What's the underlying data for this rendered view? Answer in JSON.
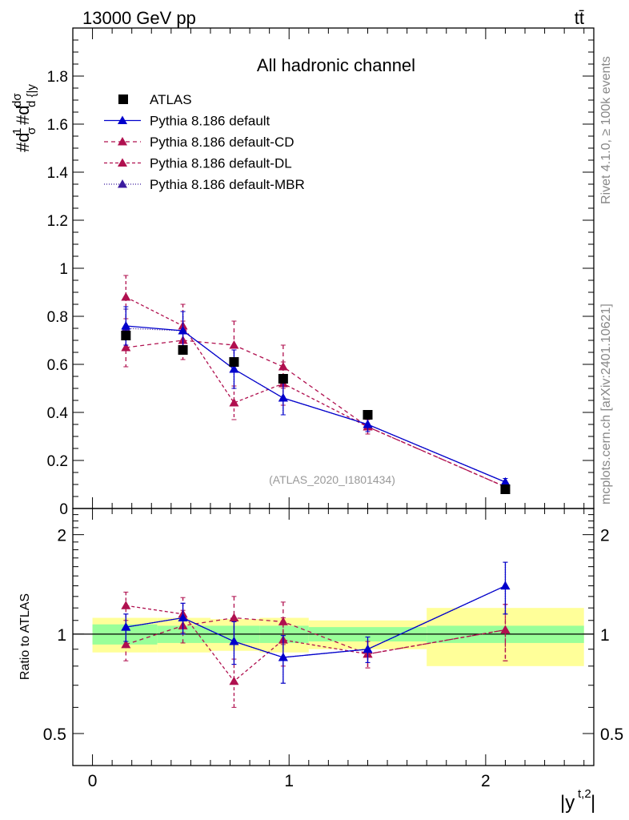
{
  "header": {
    "energy": "13000 GeV pp",
    "process": "tt̄"
  },
  "side_labels": {
    "rivet": "Rivet 4.1.0, ≥ 100k events",
    "mcplots": "mcplots.cern.ch [arXiv:2401.10621]"
  },
  "chart_data": {
    "type": "line",
    "title": "All hadronic channel",
    "analysis": "(ATLAS_2020_I1801434)",
    "xlabel": "|y^{t,2}|",
    "ylabel": "#dσ^{1}/#d dσ^{lld} / d{|y^{t,2}|}",
    "ratio_ylabel": "Ratio to ATLAS",
    "xlim": [
      -0.1,
      2.55
    ],
    "ylim": [
      0,
      2
    ],
    "ratio_ylim": [
      0.4,
      2.4
    ],
    "x_ticks": [
      0,
      1,
      2
    ],
    "x_tick_labels": [
      "0",
      "1",
      "2"
    ],
    "y_ticks": [
      0.2,
      0.4,
      0.6,
      0.8,
      1.0,
      1.2,
      1.4,
      1.6,
      1.8
    ],
    "y_tick_labels": [
      "0.2",
      "0.4",
      "0.6",
      "0.8",
      "1",
      "1.2",
      "1.4",
      "1.6",
      "1.8"
    ],
    "ratio_ticks": [
      0.5,
      1,
      2
    ],
    "ratio_tick_labels": [
      "0.5",
      "1",
      "2"
    ],
    "bin_edges": [
      0,
      0.33,
      0.6,
      0.85,
      1.1,
      1.7,
      2.5
    ],
    "x": [
      0.17,
      0.46,
      0.72,
      0.97,
      1.4,
      2.1
    ],
    "data_band_ratio_green": [
      0.07,
      0.06,
      0.06,
      0.06,
      0.05,
      0.06
    ],
    "data_band_ratio_yellow": [
      0.12,
      0.12,
      0.11,
      0.12,
      0.1,
      0.2
    ],
    "series": [
      {
        "name": "ATLAS",
        "kind": "data",
        "color": "#000000",
        "values": [
          0.72,
          0.66,
          0.61,
          0.54,
          0.39,
          0.08
        ]
      },
      {
        "name": "Pythia 8.186 default",
        "kind": "mc",
        "color": "#0000cc",
        "dash": "",
        "values": [
          0.76,
          0.74,
          0.58,
          0.46,
          0.35,
          0.11
        ],
        "errors": [
          0.08,
          0.08,
          0.08,
          0.07,
          0.03,
          0.015
        ],
        "ratio": [
          1.05,
          1.12,
          0.95,
          0.85,
          0.9,
          1.4
        ],
        "ratio_errors": [
          0.1,
          0.12,
          0.14,
          0.14,
          0.08,
          0.25
        ]
      },
      {
        "name": "Pythia 8.186 default-CD",
        "kind": "mc",
        "color": "#b0104f",
        "dash": "5,4",
        "values": [
          0.67,
          0.7,
          0.68,
          0.59,
          0.34,
          0.09
        ],
        "errors": [
          0.08,
          0.08,
          0.1,
          0.09,
          0.03,
          0.01
        ],
        "ratio": [
          0.93,
          1.06,
          1.12,
          1.09,
          0.87,
          1.03
        ],
        "ratio_errors": [
          0.1,
          0.12,
          0.18,
          0.16,
          0.08,
          0.2
        ]
      },
      {
        "name": "Pythia 8.186 default-DL",
        "kind": "mc",
        "color": "#b0104f",
        "dash": "4,3",
        "values": [
          0.88,
          0.76,
          0.44,
          0.52,
          0.34,
          0.09
        ],
        "errors": [
          0.09,
          0.09,
          0.07,
          0.09,
          0.03,
          0.01
        ],
        "ratio": [
          1.22,
          1.15,
          0.72,
          0.96,
          0.87,
          1.03
        ],
        "ratio_errors": [
          0.12,
          0.14,
          0.12,
          0.16,
          0.08,
          0.2
        ]
      },
      {
        "name": "Pythia 8.186 default-MBR",
        "kind": "mc",
        "color": "#3a1a9e",
        "dash": "1,2",
        "values": [
          0.75,
          0.74,
          0.58,
          0.46,
          0.35,
          0.11
        ],
        "errors": [
          0.08,
          0.08,
          0.08,
          0.07,
          0.03,
          0.015
        ],
        "ratio": [
          1.05,
          1.12,
          0.95,
          0.85,
          0.9,
          1.4
        ],
        "ratio_errors": [
          0.1,
          0.12,
          0.14,
          0.14,
          0.08,
          0.25
        ]
      }
    ],
    "legend": [
      {
        "label": "ATLAS"
      },
      {
        "label": "Pythia 8.186 default"
      },
      {
        "label": "Pythia 8.186 default-CD"
      },
      {
        "label": "Pythia 8.186 default-DL"
      },
      {
        "label": "Pythia 8.186 default-MBR"
      }
    ]
  }
}
